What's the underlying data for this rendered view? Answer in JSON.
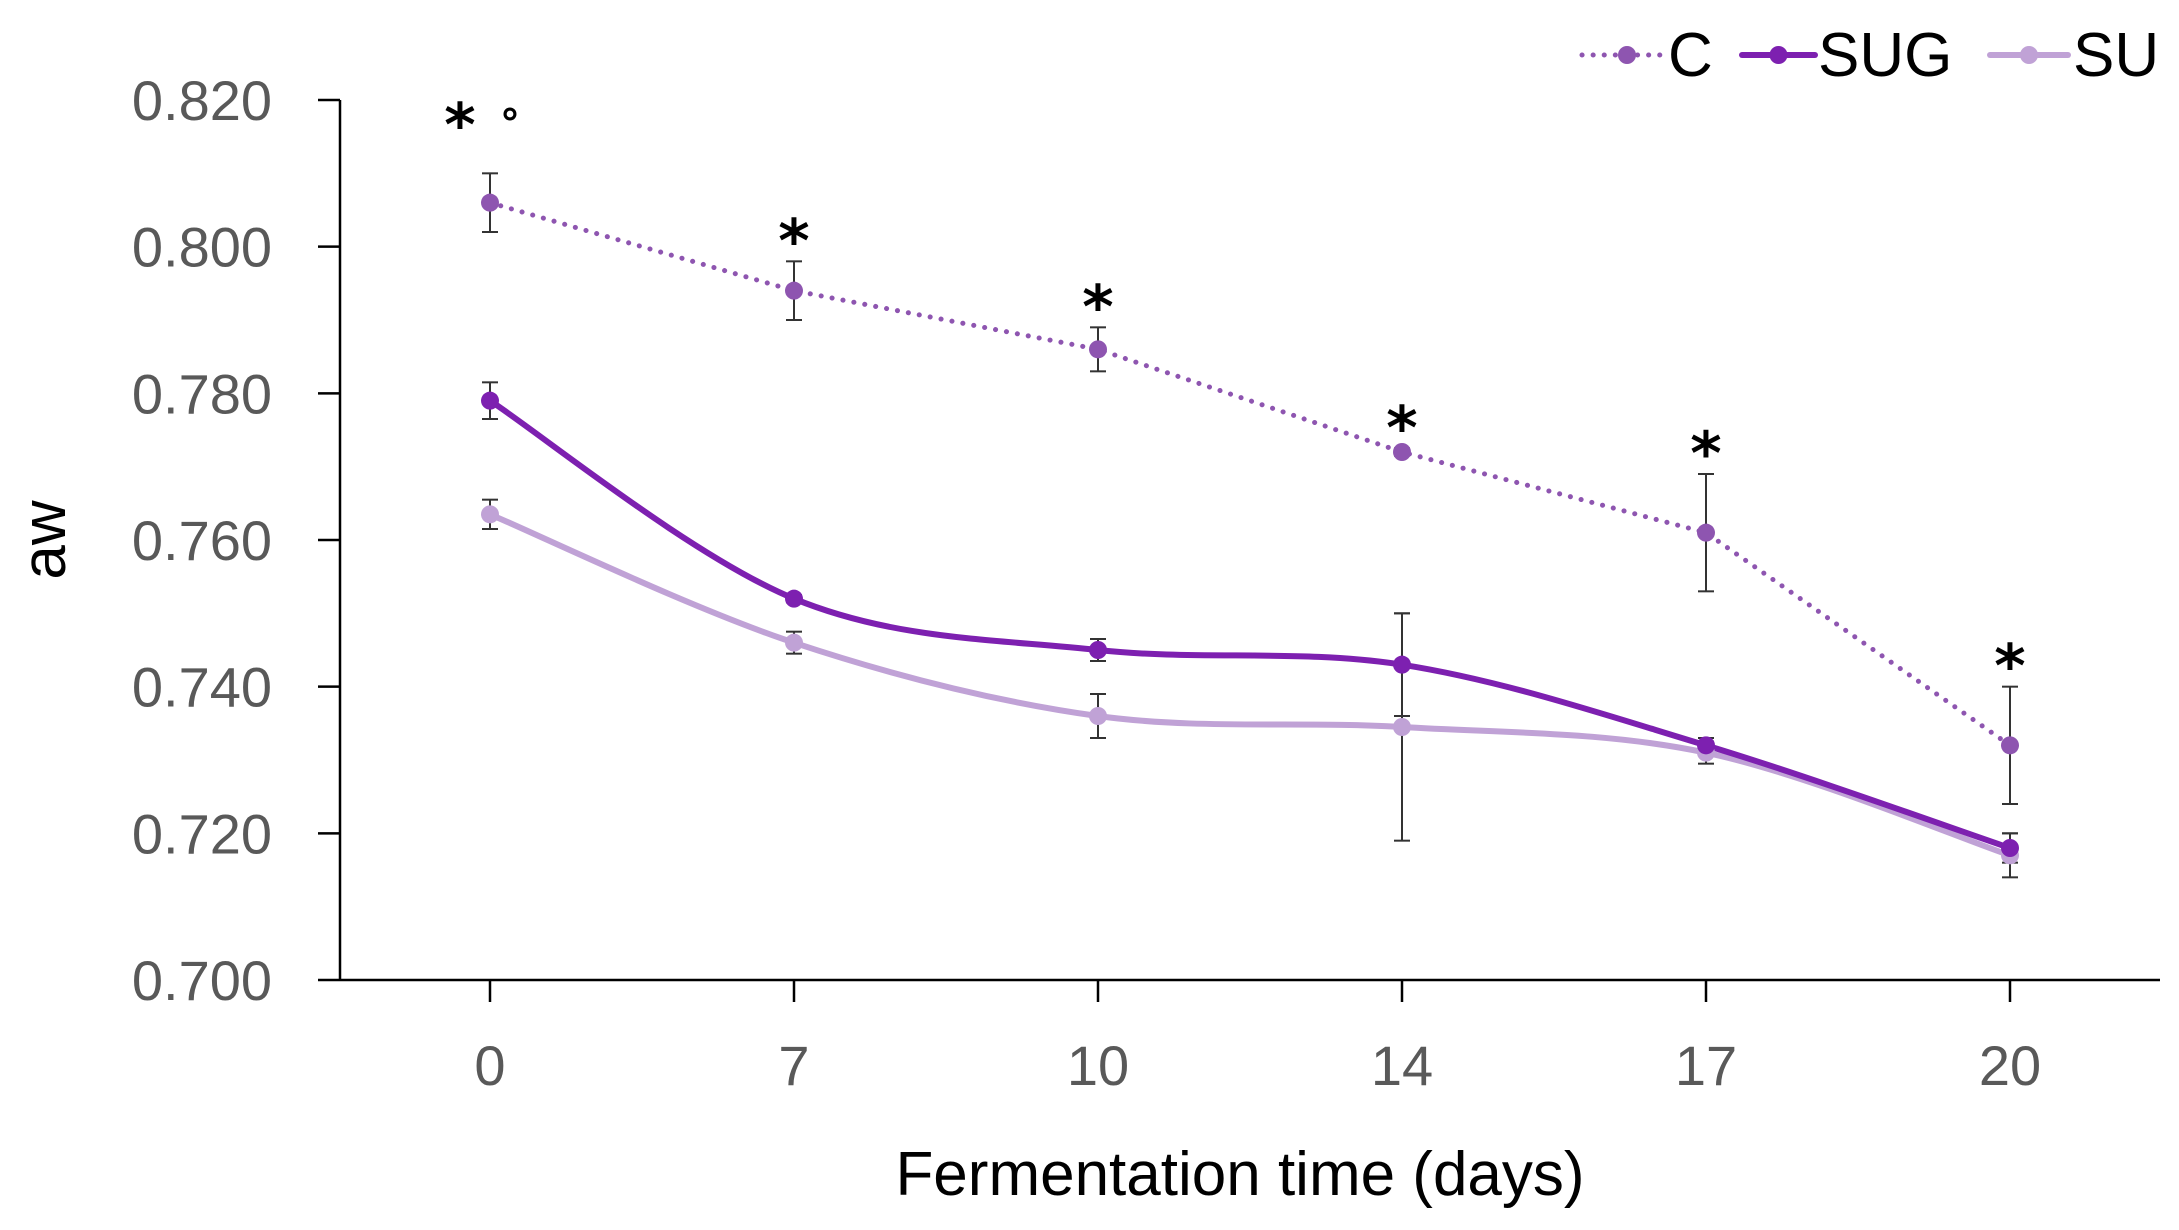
{
  "chart_data": {
    "type": "line",
    "title": "",
    "xlabel": "Fermentation time (days)",
    "ylabel": "aw",
    "categories": [
      "0",
      "7",
      "10",
      "14",
      "17",
      "20"
    ],
    "ylim": [
      0.7,
      0.82
    ],
    "yticks": [
      "0.700",
      "0.720",
      "0.740",
      "0.760",
      "0.780",
      "0.800",
      "0.820"
    ],
    "legend_position": "top-right",
    "grid": false,
    "series": [
      {
        "name": "C",
        "style": "dotted",
        "color": "#8e55b0",
        "values": [
          0.806,
          0.794,
          0.786,
          0.772,
          0.761,
          0.732
        ],
        "errors": [
          0.004,
          0.004,
          0.003,
          0.0005,
          0.008,
          0.008
        ]
      },
      {
        "name": "SUG",
        "style": "solid",
        "color": "#7d20b0",
        "values": [
          0.779,
          0.752,
          0.745,
          0.743,
          0.732,
          0.718
        ],
        "errors": [
          0.0025,
          0.0005,
          0.0015,
          0.007,
          0.001,
          0.002
        ]
      },
      {
        "name": "SU",
        "style": "solid",
        "color": "#c0a2d6",
        "values": [
          0.7635,
          0.746,
          0.736,
          0.7345,
          0.731,
          0.717
        ],
        "errors": [
          0.002,
          0.0015,
          0.003,
          0.0155,
          0.0015,
          0.003
        ]
      }
    ],
    "annotations": [
      {
        "category_index": 0,
        "text": "*",
        "secondary": "°"
      },
      {
        "category_index": 1,
        "text": "*"
      },
      {
        "category_index": 2,
        "text": "*"
      },
      {
        "category_index": 3,
        "text": "*"
      },
      {
        "category_index": 4,
        "text": "*"
      },
      {
        "category_index": 5,
        "text": "*"
      }
    ]
  }
}
